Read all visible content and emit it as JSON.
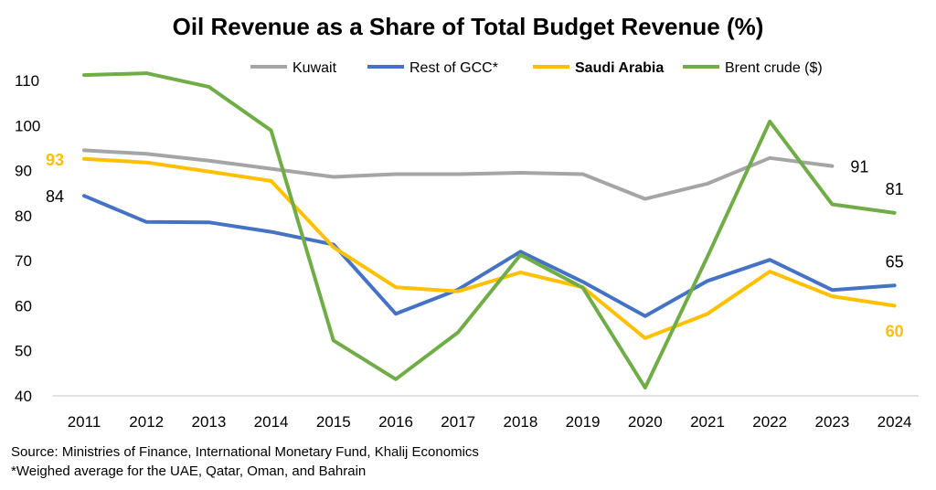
{
  "chart_data": {
    "type": "line",
    "title": "Oil Revenue as a Share of Total Budget Revenue (%)",
    "x": [
      "2011",
      "2012",
      "2013",
      "2014",
      "2015",
      "2016",
      "2017",
      "2018",
      "2019",
      "2020",
      "2021",
      "2022",
      "2023",
      "2024"
    ],
    "ylim": [
      40,
      110
    ],
    "yticks": [
      40,
      50,
      60,
      70,
      80,
      90,
      100,
      110
    ],
    "grid": false,
    "legend_position": "top",
    "series": [
      {
        "name": "Kuwait",
        "color": "#A5A5A5",
        "values": [
          94.5,
          93.7,
          92.2,
          90.4,
          88.6,
          89.2,
          89.2,
          89.5,
          89.2,
          83.7,
          87.1,
          92.8,
          91.0,
          null
        ]
      },
      {
        "name": "Rest of GCC*",
        "color": "#4472C4",
        "values": [
          84.4,
          78.6,
          78.5,
          76.4,
          73.6,
          58.2,
          63.6,
          72.0,
          65.3,
          57.7,
          65.5,
          70.2,
          63.5,
          64.5
        ]
      },
      {
        "name": "Saudi Arabia",
        "color": "#FFC000",
        "bold": true,
        "values": [
          92.6,
          91.8,
          89.8,
          87.7,
          73.0,
          64.1,
          63.2,
          67.4,
          64.1,
          52.8,
          58.2,
          67.6,
          62.1,
          60.0
        ]
      },
      {
        "name": "Brent crude ($)",
        "color": "#70AD47",
        "values": [
          111.2,
          111.6,
          108.6,
          98.9,
          52.3,
          43.7,
          54.1,
          71.3,
          64.0,
          41.8,
          70.9,
          100.9,
          82.5,
          80.6
        ]
      }
    ],
    "labels": [
      {
        "text": "93",
        "series": 2,
        "index": 0,
        "side": "left",
        "color": "#FFC000",
        "bold": true
      },
      {
        "text": "84",
        "series": 1,
        "index": 0,
        "side": "left",
        "color": "#000000",
        "bold": false
      },
      {
        "text": "91",
        "series": 0,
        "index": 12,
        "side": "right",
        "color": "#000000",
        "bold": false
      },
      {
        "text": "81",
        "series": 3,
        "index": 13,
        "side": "above",
        "color": "#000000",
        "bold": false
      },
      {
        "text": "65",
        "series": 1,
        "index": 13,
        "side": "above",
        "color": "#000000",
        "bold": false
      },
      {
        "text": "60",
        "series": 2,
        "index": 13,
        "side": "below",
        "color": "#FFC000",
        "bold": true
      }
    ]
  },
  "footnotes": {
    "source": "Source: Ministries of Finance, International Monetary Fund, Khalij Economics",
    "note": "*Weighed average for the UAE, Qatar, Oman, and Bahrain"
  }
}
